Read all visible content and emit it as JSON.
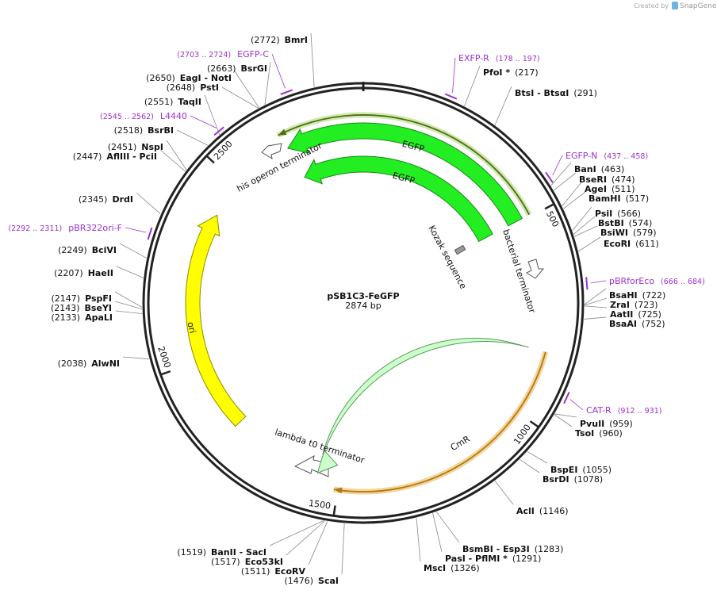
{
  "watermark": {
    "prefix": "Created by",
    "brand": "SnapGene"
  },
  "plasmid": {
    "name": "pSB1C3-FeGFP",
    "length": "2874 bp"
  },
  "enzymes": [
    {
      "pos": "(2772)",
      "name": "BmrI"
    },
    {
      "pos": "(2663)",
      "name": "BsrGI"
    },
    {
      "pos": "(2650)",
      "name": "EagI - NotI"
    },
    {
      "pos": "(2648)",
      "name": "PstI"
    },
    {
      "pos": "(2551)",
      "name": "TaqII"
    },
    {
      "pos": "(2518)",
      "name": "BsrBI"
    },
    {
      "pos": "(2451)",
      "name": "NspI"
    },
    {
      "pos": "(2447)",
      "name": "AflIII - PciI"
    },
    {
      "pos": "(2345)",
      "name": "DrdI"
    },
    {
      "pos": "(2249)",
      "name": "BciVI"
    },
    {
      "pos": "(2207)",
      "name": "HaeII"
    },
    {
      "pos": "(2147)",
      "name": "PspFI"
    },
    {
      "pos": "(2143)",
      "name": "BseYI"
    },
    {
      "pos": "(2133)",
      "name": "ApaLI"
    },
    {
      "pos": "(2038)",
      "name": "AlwNI"
    },
    {
      "pos": "(1519)",
      "name": "BanII - SacI"
    },
    {
      "pos": "(1517)",
      "name": "Eco53kI"
    },
    {
      "pos": "(1511)",
      "name": "EcoRV"
    },
    {
      "pos": "(1476)",
      "name": "ScaI"
    },
    {
      "pos": "(1326)",
      "name": "MscI"
    },
    {
      "pos": "(1291)",
      "name": "PasI - PflMI *"
    },
    {
      "pos": "(1283)",
      "name": "BsmBI - Esp3I"
    },
    {
      "pos": "(1146)",
      "name": "AclI"
    },
    {
      "pos": "(1078)",
      "name": "BsrDI"
    },
    {
      "pos": "(1055)",
      "name": "BspEI"
    },
    {
      "pos": "(960)",
      "name": "TsoI"
    },
    {
      "pos": "(959)",
      "name": "PvuII"
    },
    {
      "pos": "(752)",
      "name": "BsaAI"
    },
    {
      "pos": "(725)",
      "name": "AatII"
    },
    {
      "pos": "(723)",
      "name": "ZraI"
    },
    {
      "pos": "(722)",
      "name": "BsaHI"
    },
    {
      "pos": "(611)",
      "name": "EcoRI"
    },
    {
      "pos": "(579)",
      "name": "BsiWI"
    },
    {
      "pos": "(574)",
      "name": "BstBI"
    },
    {
      "pos": "(566)",
      "name": "PsiI"
    },
    {
      "pos": "(517)",
      "name": "BamHI"
    },
    {
      "pos": "(511)",
      "name": "AgeI"
    },
    {
      "pos": "(474)",
      "name": "BseRI"
    },
    {
      "pos": "(463)",
      "name": "BanI"
    },
    {
      "pos": "(291)",
      "name": "BtsI - BtsαI"
    },
    {
      "pos": "(217)",
      "name": "PfoI *"
    }
  ],
  "primers": [
    {
      "range": "(2703 .. 2724)",
      "name": "EGFP-C"
    },
    {
      "range": "(2545 .. 2562)",
      "name": "L4440"
    },
    {
      "range": "(2292 .. 2311)",
      "name": "pBR322ori-F"
    },
    {
      "range": "(178 .. 197)",
      "name": "EXFP-R"
    },
    {
      "range": "(437 .. 458)",
      "name": "EGFP-N"
    },
    {
      "range": "(666 .. 684)",
      "name": "pBRforEco"
    },
    {
      "range": "(912 .. 931)",
      "name": "CAT-R"
    }
  ],
  "features": [
    "EGFP",
    "EGFP",
    "his operon terminator",
    "Kozak sequence",
    "bacterial terminator",
    "ori",
    "CmR",
    "lambda t0 terminator"
  ],
  "ticks": [
    500,
    1000,
    1500,
    2000,
    2500
  ]
}
